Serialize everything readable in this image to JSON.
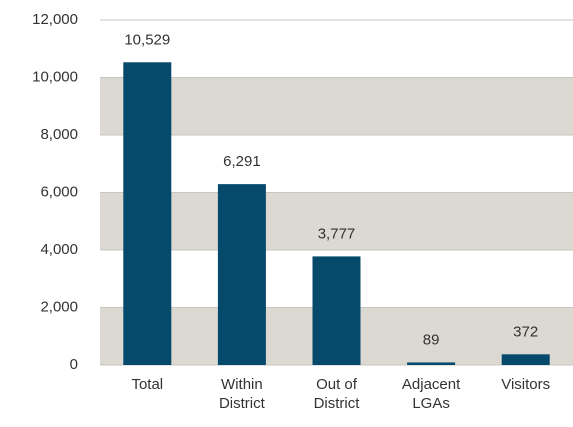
{
  "chart_data": {
    "type": "bar",
    "categories": [
      "Total",
      "Within District",
      "Out of District",
      "Adjacent LGAs",
      "Visitors"
    ],
    "values": [
      10529,
      6291,
      3777,
      89,
      372
    ],
    "value_labels": [
      "10,529",
      "6,291",
      "3,777",
      "89",
      "372"
    ],
    "color": "#064a6b",
    "band_color": "#dcd8d2",
    "ylim": [
      0,
      12000
    ],
    "yticks": [
      0,
      {
        "value": 2000,
        "label": "2,000"
      },
      {
        "value": 4000,
        "label": "4,000"
      },
      {
        "value": 6000,
        "label": "6,000"
      },
      {
        "value": 8000,
        "label": "8,000"
      },
      {
        "value": 10000,
        "label": "10,000"
      },
      {
        "value": 12000,
        "label": "12,000"
      }
    ],
    "grid": true
  }
}
